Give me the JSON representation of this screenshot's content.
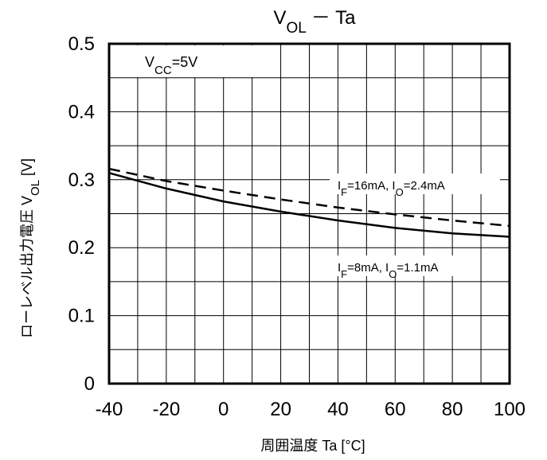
{
  "chart_data": {
    "type": "line",
    "title": {
      "main": "V",
      "sub": "OL",
      "rest": "－ Ta"
    },
    "xlabel": "周囲温度 Ta [°C]",
    "ylabel": {
      "main": "ローレベル出力電圧 V",
      "sub": "OL",
      "rest": " [V]"
    },
    "xlim": [
      -40,
      100
    ],
    "ylim": [
      0,
      0.5
    ],
    "x_minor_step": 10,
    "y_minor_step": 0.05,
    "x_ticks": [
      -40,
      -20,
      0,
      20,
      40,
      60,
      80,
      100
    ],
    "x_tick_labels": [
      "-40",
      "-20",
      "0",
      "20",
      "40",
      "60",
      "80",
      "100"
    ],
    "y_ticks": [
      0,
      0.1,
      0.2,
      0.3,
      0.4,
      0.5
    ],
    "y_tick_labels": [
      "0",
      "0.1",
      "0.2",
      "0.3",
      "0.4",
      "0.5"
    ],
    "grid": true,
    "condition": {
      "main": "V",
      "sub": "CC",
      "rest": "=5V"
    },
    "series": [
      {
        "label_parts": [
          [
            "I",
            ""
          ],
          [
            "F",
            "sub"
          ],
          [
            "=16mA, I",
            ""
          ],
          [
            "O",
            "sub"
          ],
          [
            "=2.4mA",
            ""
          ]
        ],
        "style": "dashed",
        "x": [
          -40,
          -20,
          0,
          20,
          40,
          60,
          80,
          100
        ],
        "y": [
          0.316,
          0.298,
          0.284,
          0.271,
          0.259,
          0.249,
          0.24,
          0.232
        ]
      },
      {
        "label_parts": [
          [
            "I",
            ""
          ],
          [
            "F",
            "sub"
          ],
          [
            "=8mA, I",
            ""
          ],
          [
            "O",
            "sub"
          ],
          [
            "=1.1mA",
            ""
          ]
        ],
        "style": "solid",
        "x": [
          -40,
          -20,
          0,
          20,
          40,
          60,
          80,
          100
        ],
        "y": [
          0.31,
          0.287,
          0.268,
          0.253,
          0.24,
          0.229,
          0.221,
          0.216
        ]
      }
    ]
  }
}
